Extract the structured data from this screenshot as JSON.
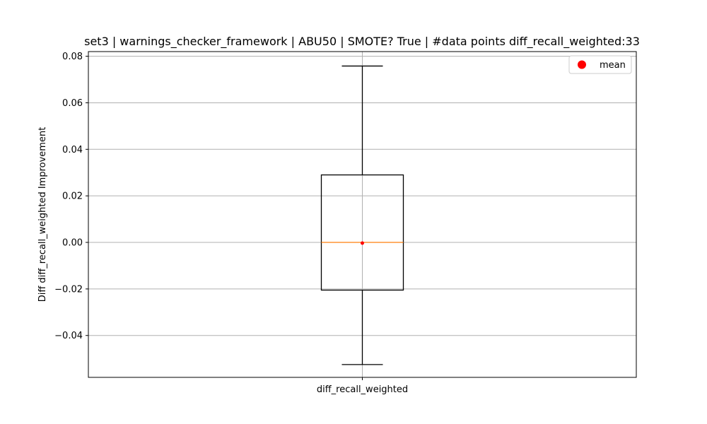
{
  "chart_data": {
    "type": "box",
    "title": "set3 | warnings_checker_framework | ABU50 | SMOTE? True | #data points diff_recall_weighted:33",
    "xlabel": "",
    "ylabel": "Diff diff_recall_weighted Improvement",
    "categories": [
      "diff_recall_weighted"
    ],
    "ylim": [
      -0.058,
      0.082
    ],
    "yticks": [
      -0.04,
      -0.02,
      0.0,
      0.02,
      0.04,
      0.06,
      0.08
    ],
    "ytick_labels": [
      "−0.04",
      "−0.02",
      "0.00",
      "0.02",
      "0.04",
      "0.06",
      "0.08"
    ],
    "grid": true,
    "legend": {
      "position": "top-right",
      "entries": [
        {
          "label": "mean",
          "marker": "circle",
          "color": "#ff0000"
        }
      ]
    },
    "boxes": [
      {
        "category": "diff_recall_weighted",
        "whisker_low": -0.0525,
        "q1": -0.0205,
        "median": 0.0,
        "q3": 0.029,
        "whisker_high": 0.0758,
        "mean": -0.0003
      }
    ],
    "colors": {
      "box": "#000000",
      "median": "#ff7f0e",
      "mean": "#ff0000",
      "grid": "#b0b0b0"
    }
  }
}
